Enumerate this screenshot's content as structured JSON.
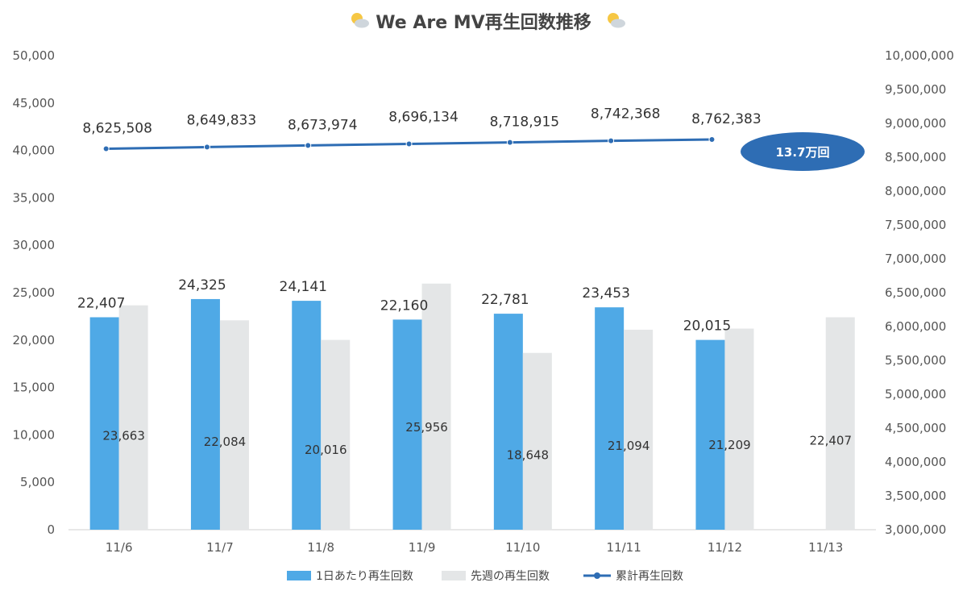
{
  "chart_data": {
    "type": "bar",
    "title": "We Are MV再生回数推移",
    "title_icon": "sun-behind-cloud-icon",
    "categories": [
      "11/6",
      "11/7",
      "11/8",
      "11/9",
      "11/10",
      "11/11",
      "11/12",
      "11/13"
    ],
    "series": [
      {
        "name": "1日あたり再生回数",
        "kind": "bar",
        "axis": "left",
        "color": "#4fa9e6",
        "values": [
          22407,
          24325,
          24141,
          22160,
          22781,
          23453,
          20015,
          null
        ],
        "labels": [
          "22,407",
          "24,325",
          "24,141",
          "22,160",
          "22,781",
          "23,453",
          "20,015",
          ""
        ]
      },
      {
        "name": "先週の再生回数",
        "kind": "bar",
        "axis": "left",
        "color": "#e4e6e7",
        "values": [
          23663,
          22084,
          20016,
          25956,
          18648,
          21094,
          21209,
          22407
        ],
        "labels": [
          "23,663",
          "22,084",
          "20,016",
          "25,956",
          "18,648",
          "21,094",
          "21,209",
          "22,407"
        ]
      },
      {
        "name": "累計再生回数",
        "kind": "line",
        "axis": "right",
        "color": "#2e6db4",
        "values": [
          8625508,
          8649833,
          8673974,
          8696134,
          8718915,
          8742368,
          8762383,
          null
        ],
        "labels": [
          "8,625,508",
          "8,649,833",
          "8,673,974",
          "8,696,134",
          "8,718,915",
          "8,742,368",
          "8,762,383",
          ""
        ]
      }
    ],
    "y_left": {
      "ylim": [
        0,
        50000
      ],
      "ticks": [
        "0",
        "5,000",
        "10,000",
        "15,000",
        "20,000",
        "25,000",
        "30,000",
        "35,000",
        "40,000",
        "45,000",
        "50,000"
      ]
    },
    "y_right": {
      "ylim": [
        3000000,
        10000000
      ],
      "ticks": [
        "3,000,000",
        "3,500,000",
        "4,000,000",
        "4,500,000",
        "5,000,000",
        "5,500,000",
        "6,000,000",
        "6,500,000",
        "7,000,000",
        "7,500,000",
        "8,000,000",
        "8,500,000",
        "9,000,000",
        "9,500,000",
        "10,000,000"
      ]
    },
    "annotation": {
      "text": "13.7万回",
      "color": "#2e6db4"
    },
    "legend": {
      "position": "bottom"
    },
    "grid": false
  }
}
